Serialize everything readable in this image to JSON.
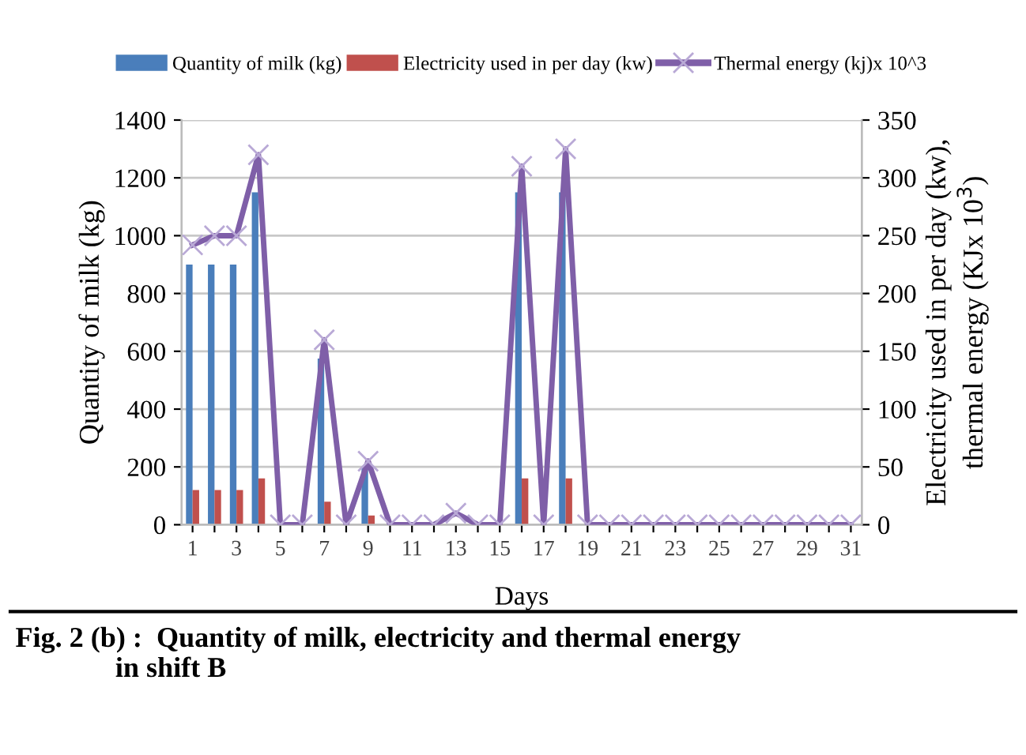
{
  "chart_data": {
    "type": "bar",
    "xlabel": "Days",
    "ylabel": "Quantity of milk (kg)",
    "y2label": "Electricity used in per day (kw),\nthermal energy (KJx 10$^{3}$)",
    "categories": [
      "1",
      null,
      "3",
      null,
      "5",
      null,
      "7",
      null,
      "9",
      null,
      "11",
      null,
      "13",
      null,
      "15",
      null,
      "17",
      null,
      "19",
      null,
      "21",
      null,
      "23",
      null,
      "25",
      null,
      "27",
      null,
      "29",
      null,
      "31"
    ],
    "series": [
      {
        "name": "Quantity of milk (kg)",
        "color": "#4a7ebb",
        "values": [
          900,
          900,
          900,
          1150,
          0,
          0,
          575,
          0,
          200,
          0,
          0,
          0,
          0,
          0,
          0,
          1150,
          0,
          1150,
          0,
          0,
          0,
          0,
          0,
          0,
          0,
          0,
          0,
          0,
          0,
          0,
          0
        ]
      },
      {
        "name": "Electricity used in per day (kw)",
        "axis": "y2",
        "color": "#c0504d",
        "values": [
          30,
          30,
          30,
          40,
          0,
          0,
          20,
          0,
          8,
          0,
          0,
          0,
          0,
          0,
          0,
          40,
          0,
          40,
          0,
          0,
          0,
          0,
          0,
          0,
          0,
          0,
          0,
          0,
          0,
          0,
          0
        ]
      },
      {
        "name": "Thermal energy (kj)x 10^3",
        "type": "line",
        "axis": "y2",
        "color": "#7f5fa8",
        "marker": "cross",
        "values": [
          242,
          250,
          250,
          320,
          0,
          0,
          160,
          0,
          55,
          0,
          0,
          0,
          10,
          0,
          0,
          310,
          0,
          325,
          0,
          0,
          0,
          0,
          0,
          0,
          0,
          0,
          0,
          0,
          0,
          0,
          0
        ]
      }
    ],
    "ylim": [
      0,
      1400
    ],
    "yticks": [
      0,
      200,
      400,
      600,
      800,
      1000,
      1200,
      1400
    ],
    "y2lim": [
      0,
      350
    ],
    "y2ticks": [
      0,
      50,
      100,
      150,
      200,
      250,
      300,
      350
    ],
    "grid": "y",
    "legend": "top",
    "annotations": [
      "Fig. 2 (b) :  Quantity of milk, electricity and thermal energy\n              in shift B"
    ]
  }
}
